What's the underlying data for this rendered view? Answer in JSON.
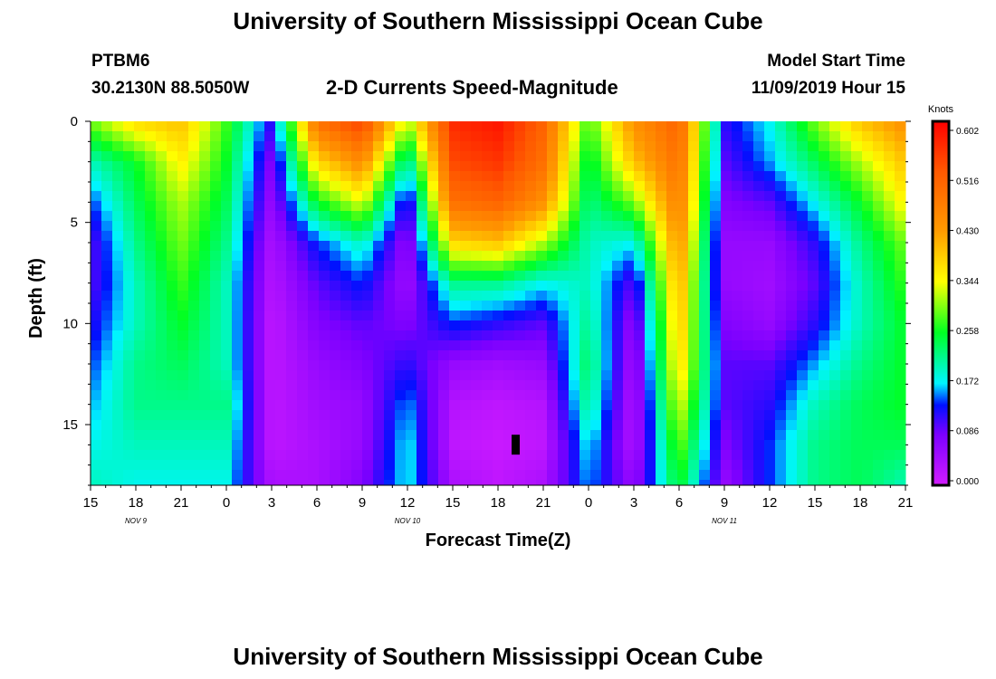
{
  "header": {
    "title": "University of Southern Mississippi Ocean Cube",
    "station_id": "PTBM6",
    "station_coords": "30.2130N 88.5050W",
    "model_start_label": "Model Start Time",
    "model_start_value": "11/09/2019 Hour 15",
    "subtitle": "2-D Currents Speed-Magnitude",
    "footer_title": "University of Southern Mississippi Ocean Cube"
  },
  "chart_data": {
    "type": "heatmap",
    "title": "2-D Currents Speed-Magnitude",
    "xlabel": "Forecast Time(Z)",
    "ylabel": "Depth (ft)",
    "x_tick_labels": [
      "15",
      "18",
      "21",
      "0",
      "3",
      "6",
      "9",
      "12",
      "15",
      "18",
      "21",
      "0",
      "3",
      "6",
      "9",
      "12",
      "15",
      "18",
      "21"
    ],
    "date_labels": [
      {
        "label": "NOV  9",
        "hour_index": 1
      },
      {
        "label": "NOV  10",
        "hour_index": 7
      },
      {
        "label": "NOV  11",
        "hour_index": 14
      }
    ],
    "y_ticks": [
      0,
      5,
      10,
      15
    ],
    "ylim": [
      0,
      18
    ],
    "y_reversed": true,
    "colorbar": {
      "unit": "Knots",
      "ticks": [
        "0.602",
        "0.516",
        "0.430",
        "0.344",
        "0.258",
        "0.172",
        "0.086",
        "0.000"
      ],
      "range": [
        0.0,
        0.62
      ]
    },
    "x_values": [
      0,
      1,
      2,
      3,
      4,
      5,
      6,
      7,
      8,
      9,
      10,
      11,
      12,
      13,
      14,
      15,
      16,
      17,
      18
    ],
    "depth_values": [
      0,
      2,
      4,
      6,
      8,
      10,
      12,
      14,
      16,
      18
    ],
    "speed_knots": [
      [
        0.3,
        0.38,
        0.4,
        0.28,
        0.12,
        0.5,
        0.56,
        0.32,
        0.58,
        0.6,
        0.52,
        0.28,
        0.45,
        0.52,
        0.12,
        0.18,
        0.3,
        0.4,
        0.45
      ],
      [
        0.2,
        0.26,
        0.36,
        0.26,
        0.08,
        0.38,
        0.46,
        0.2,
        0.55,
        0.57,
        0.5,
        0.24,
        0.4,
        0.5,
        0.1,
        0.16,
        0.24,
        0.32,
        0.4
      ],
      [
        0.14,
        0.24,
        0.32,
        0.24,
        0.06,
        0.26,
        0.34,
        0.1,
        0.5,
        0.52,
        0.45,
        0.22,
        0.3,
        0.48,
        0.08,
        0.1,
        0.18,
        0.26,
        0.36
      ],
      [
        0.1,
        0.22,
        0.3,
        0.22,
        0.04,
        0.14,
        0.2,
        0.06,
        0.38,
        0.4,
        0.32,
        0.2,
        0.18,
        0.45,
        0.06,
        0.06,
        0.12,
        0.22,
        0.3
      ],
      [
        0.1,
        0.2,
        0.28,
        0.2,
        0.03,
        0.1,
        0.14,
        0.05,
        0.22,
        0.22,
        0.18,
        0.2,
        0.1,
        0.42,
        0.06,
        0.05,
        0.1,
        0.2,
        0.28
      ],
      [
        0.12,
        0.2,
        0.26,
        0.2,
        0.02,
        0.08,
        0.1,
        0.08,
        0.14,
        0.12,
        0.1,
        0.22,
        0.06,
        0.4,
        0.08,
        0.06,
        0.12,
        0.2,
        0.26
      ],
      [
        0.14,
        0.22,
        0.24,
        0.2,
        0.02,
        0.06,
        0.08,
        0.12,
        0.06,
        0.05,
        0.06,
        0.24,
        0.04,
        0.38,
        0.1,
        0.1,
        0.16,
        0.22,
        0.26
      ],
      [
        0.16,
        0.22,
        0.22,
        0.22,
        0.02,
        0.05,
        0.06,
        0.16,
        0.03,
        0.02,
        0.03,
        0.22,
        0.03,
        0.34,
        0.1,
        0.12,
        0.2,
        0.24,
        0.26
      ],
      [
        0.18,
        0.2,
        0.2,
        0.2,
        0.02,
        0.04,
        0.06,
        0.18,
        0.02,
        0.01,
        0.02,
        0.18,
        0.03,
        0.3,
        0.08,
        0.14,
        0.22,
        0.24,
        0.24
      ],
      [
        0.2,
        0.18,
        0.18,
        0.18,
        0.04,
        0.04,
        0.08,
        0.18,
        0.04,
        0.02,
        0.04,
        0.16,
        0.06,
        0.26,
        0.06,
        0.14,
        0.22,
        0.24,
        0.2
      ]
    ]
  }
}
